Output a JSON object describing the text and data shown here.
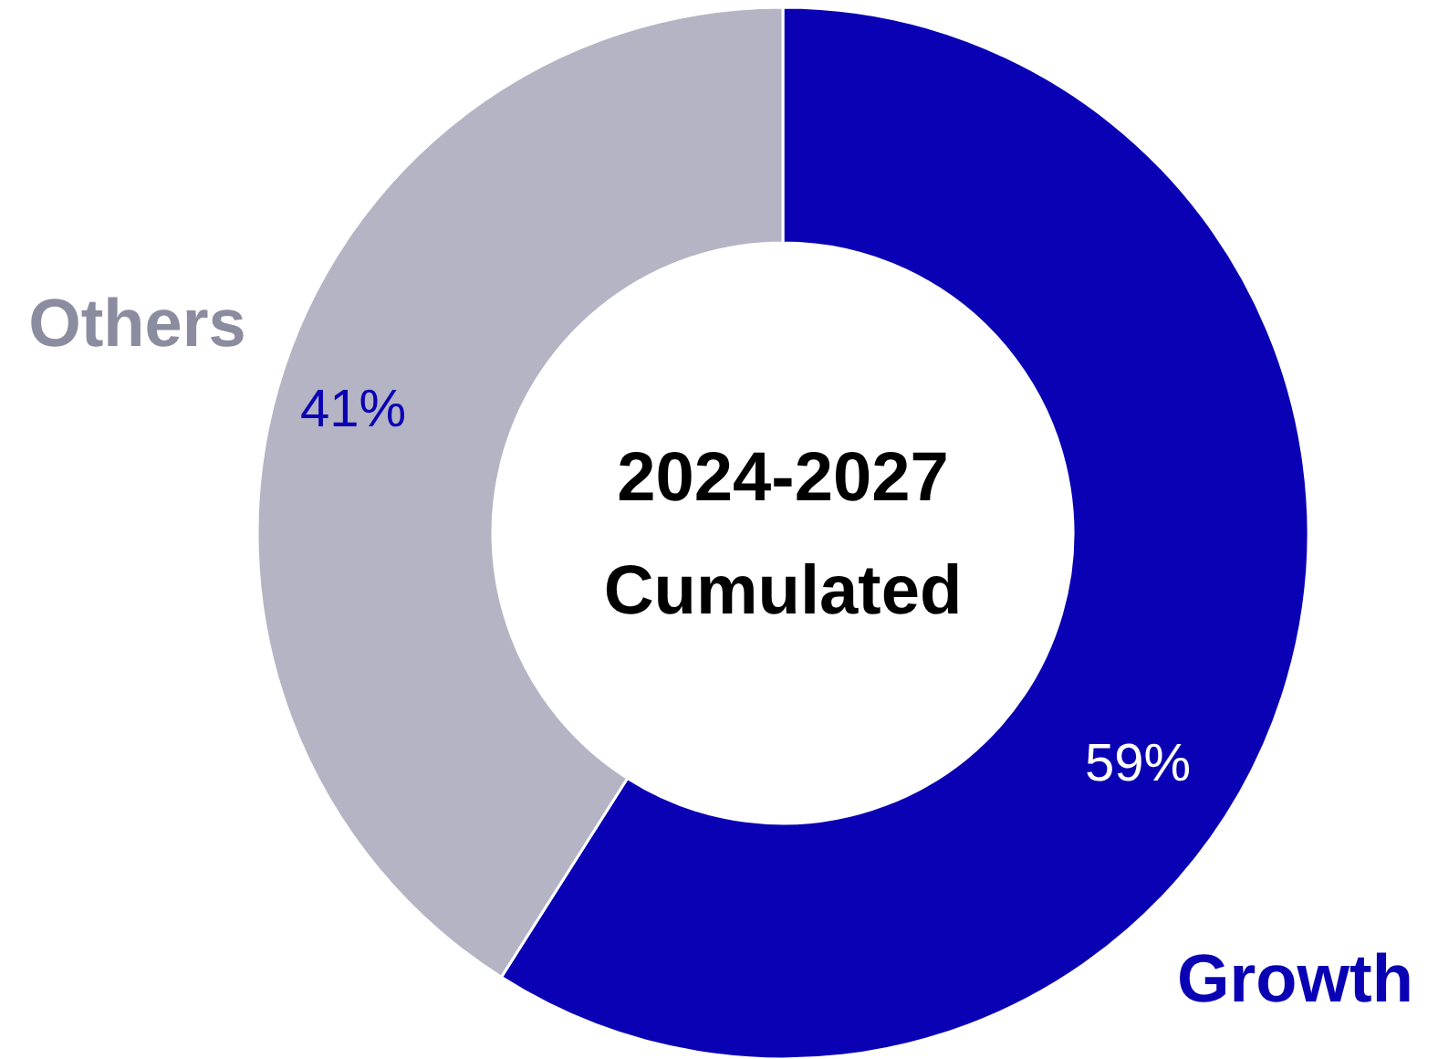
{
  "chart_data": {
    "type": "donut",
    "title": "2024-2027",
    "subtitle": "Cumulated",
    "categories": [
      "Growth",
      "Others"
    ],
    "values": [
      59,
      41
    ],
    "colors": [
      "#0a00b4",
      "#b4b4c4"
    ],
    "value_labels": [
      "59%",
      "41%"
    ]
  }
}
